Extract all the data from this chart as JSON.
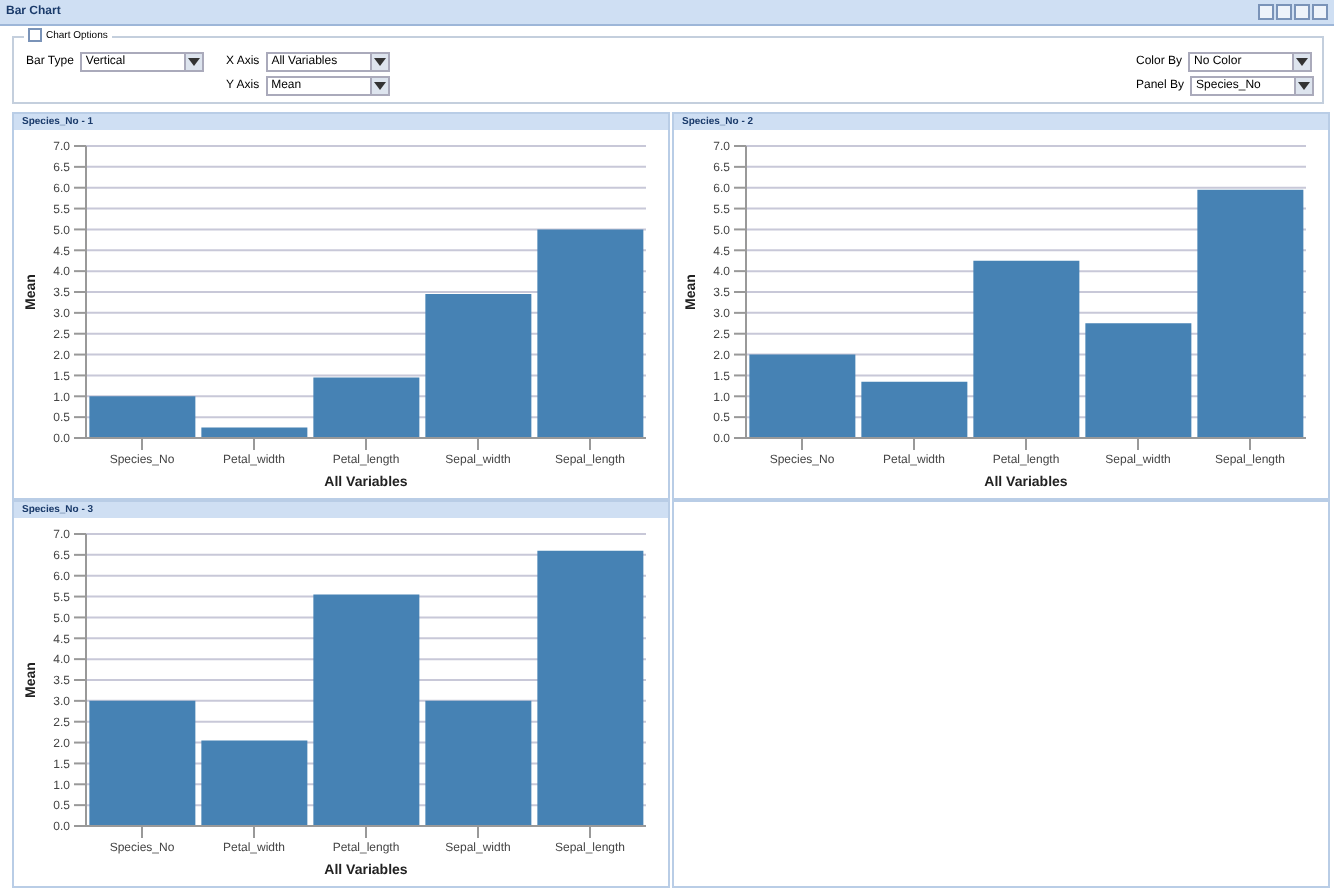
{
  "chart_data": [
    {
      "type": "other",
      "title": "Bar Chart",
      "annotations": [
        "Chart Options",
        "Bar Type",
        "Vertical",
        "X Axis",
        "All Variables",
        "Y Axis",
        "Mean",
        "Color By",
        "No Color",
        "Panel By",
        "Species_No"
      ]
    },
    {
      "type": "bar",
      "title": "Species_No - 1",
      "xlabel": "All Variables",
      "ylabel": "Mean",
      "categories": [
        "Species_No",
        "Petal_width",
        "Petal_length",
        "Sepal_width",
        "Sepal_length"
      ],
      "values": [
        1.0,
        0.25,
        1.45,
        3.45,
        5.0
      ],
      "color": "#4682b4",
      "ylim": [
        0,
        7
      ],
      "yticks": [
        {
          "value": 0,
          "label": "0.0"
        },
        0.5,
        {
          "value": 1,
          "label": "1.0"
        },
        1.5,
        {
          "value": 2,
          "label": "2.0"
        },
        2.5,
        {
          "value": 3,
          "label": "3.0"
        },
        3.5,
        {
          "value": 4,
          "label": "4.0"
        },
        4.5,
        {
          "value": 5,
          "label": "5.0"
        },
        5.5,
        {
          "value": 6,
          "label": "6.0"
        },
        6.5,
        {
          "value": 7,
          "label": "7.0"
        }
      ],
      "grid": "y"
    },
    {
      "type": "bar",
      "title": "Species_No - 2",
      "xlabel": "All Variables",
      "ylabel": "Mean",
      "categories": [
        "Species_No",
        "Petal_width",
        "Petal_length",
        "Sepal_width",
        "Sepal_length"
      ],
      "values": [
        2.0,
        1.35,
        4.25,
        2.75,
        5.95
      ],
      "color": "#4682b4",
      "ylim": [
        0,
        7
      ],
      "yticks": [
        {
          "value": 0,
          "label": "0.0"
        },
        0.5,
        {
          "value": 1,
          "label": "1.0"
        },
        1.5,
        {
          "value": 2,
          "label": "2.0"
        },
        2.5,
        {
          "value": 3,
          "label": "3.0"
        },
        3.5,
        {
          "value": 4,
          "label": "4.0"
        },
        4.5,
        {
          "value": 5,
          "label": "5.0"
        },
        5.5,
        {
          "value": 6,
          "label": "6.0"
        },
        6.5,
        {
          "value": 7,
          "label": "7.0"
        }
      ],
      "grid": "y"
    },
    {
      "type": "bar",
      "title": "Species_No - 3",
      "xlabel": "All Variables",
      "ylabel": "Mean",
      "categories": [
        "Species_No",
        "Petal_width",
        "Petal_length",
        "Sepal_width",
        "Sepal_length"
      ],
      "values": [
        3.0,
        2.05,
        5.55,
        3.0,
        6.6
      ],
      "color": "#4682b4",
      "ylim": [
        0,
        7
      ],
      "yticks": [
        {
          "value": 0,
          "label": "0.0"
        },
        0.5,
        {
          "value": 1,
          "label": "1.0"
        },
        1.5,
        {
          "value": 2,
          "label": "2.0"
        },
        2.5,
        {
          "value": 3,
          "label": "3.0"
        },
        3.5,
        {
          "value": 4,
          "label": "4.0"
        },
        4.5,
        {
          "value": 5,
          "label": "5.0"
        },
        5.5,
        {
          "value": 6,
          "label": "6.0"
        },
        6.5,
        {
          "value": 7,
          "label": "7.0"
        }
      ],
      "grid": "y"
    }
  ]
}
